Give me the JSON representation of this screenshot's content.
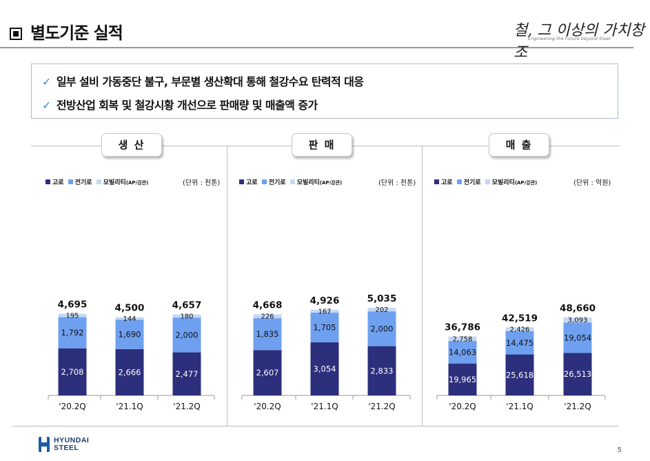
{
  "header": {
    "title": "별도기준 실적",
    "slogan": "철, 그 이상의 가치창조",
    "slogan_en": "Engineering the Future beyond Steel"
  },
  "summary": {
    "lines": [
      "일부 설비 가동중단 불구, 부문별 생산확대 통해 철강수요 탄력적 대응",
      "전방산업 회복 및 철강시황 개선으로 판매량 및 매출액 증가"
    ]
  },
  "legend": {
    "items": [
      {
        "label": "고로",
        "color": "#2c2f7c"
      },
      {
        "label": "전기로",
        "color": "#6fa0f0"
      },
      {
        "label": "모빌리티",
        "sub": "(AP/강관)",
        "color": "#c4d8f4"
      }
    ]
  },
  "colors": {
    "blast": "#2c2f7c",
    "electric": "#6fa0f0",
    "mobility": "#c4d8f4"
  },
  "chart_data": [
    {
      "type": "bar",
      "stacked": true,
      "title": "생 산",
      "unit": "(단위 : 천톤)",
      "categories": [
        "'20.2Q",
        "'21.1Q",
        "'21.2Q"
      ],
      "series": [
        {
          "name": "고로",
          "values": [
            2708,
            2666,
            2477
          ]
        },
        {
          "name": "전기로",
          "values": [
            1792,
            1690,
            2000
          ]
        },
        {
          "name": "모빌리티",
          "values": [
            195,
            144,
            180
          ]
        }
      ],
      "series_labels": [
        [
          "2,708",
          "2,666",
          "2,477"
        ],
        [
          "1,792",
          "1,690",
          "2,000"
        ],
        [
          "195",
          "144",
          "180"
        ]
      ],
      "totals": [
        4695,
        4500,
        4657
      ],
      "total_labels": [
        "4,695",
        "4,500",
        "4,657"
      ]
    },
    {
      "type": "bar",
      "stacked": true,
      "title": "판 매",
      "unit": "(단위 : 천톤)",
      "categories": [
        "'20.2Q",
        "'21.1Q",
        "'21.2Q"
      ],
      "series": [
        {
          "name": "고로",
          "values": [
            2607,
            3054,
            2833
          ]
        },
        {
          "name": "전기로",
          "values": [
            1835,
            1705,
            2000
          ]
        },
        {
          "name": "모빌리티",
          "values": [
            226,
            167,
            202
          ]
        }
      ],
      "series_labels": [
        [
          "2,607",
          "3,054",
          "2,833"
        ],
        [
          "1,835",
          "1,705",
          "2,000"
        ],
        [
          "226",
          "167",
          "202"
        ]
      ],
      "totals": [
        4668,
        4926,
        5035
      ],
      "total_labels": [
        "4,668",
        "4,926",
        "5,035"
      ]
    },
    {
      "type": "bar",
      "stacked": true,
      "title": "매 출",
      "unit": "(단위 : 억원)",
      "categories": [
        "'20.2Q",
        "'21.1Q",
        "'21.2Q"
      ],
      "series": [
        {
          "name": "고로",
          "values": [
            19965,
            25618,
            26513
          ]
        },
        {
          "name": "전기로",
          "values": [
            14063,
            14475,
            19054
          ]
        },
        {
          "name": "모빌리티",
          "values": [
            2758,
            2426,
            3093
          ]
        }
      ],
      "series_labels": [
        [
          "19,965",
          "25,618",
          "26,513"
        ],
        [
          "14,063",
          "14,475",
          "19,054"
        ],
        [
          "2,758",
          "2,426",
          "3,093"
        ]
      ],
      "totals": [
        36786,
        42519,
        48660
      ],
      "total_labels": [
        "36,786",
        "42,519",
        "48,660"
      ]
    }
  ],
  "footer": {
    "brand_line1": "HYUNDAI",
    "brand_line2": "STEEL",
    "page": "5"
  }
}
